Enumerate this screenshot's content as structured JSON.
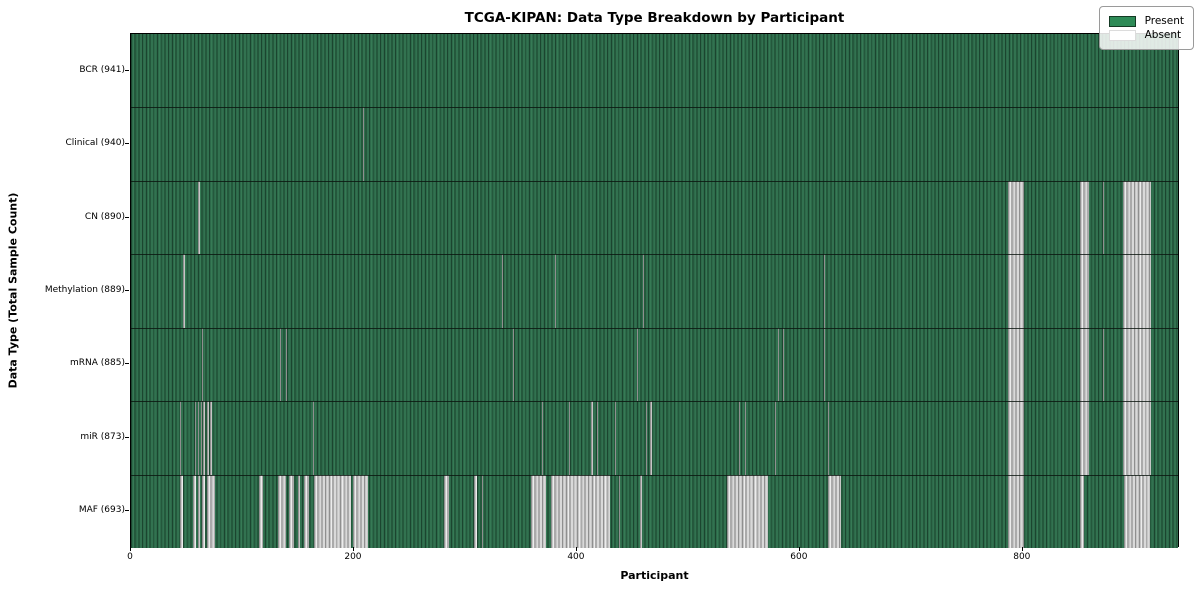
{
  "title": "TCGA-KIPAN: Data Type Breakdown by Participant",
  "xlabel": "Participant",
  "ylabel": "Data Type (Total Sample Count)",
  "legend": {
    "present_label": "Present",
    "absent_label": "Absent"
  },
  "colors": {
    "present": "#2e8b57",
    "present_render_base": "#2d6a4a",
    "absent": "#ffffff",
    "absent_render_base": "#c2c2c2",
    "plot_border": "#000000"
  },
  "chart_data": {
    "type": "heatmap",
    "title": "TCGA-KIPAN: Data Type Breakdown by Participant",
    "xlabel": "Participant",
    "ylabel": "Data Type (Total Sample Count)",
    "legend_entries": [
      "Present",
      "Absent"
    ],
    "legend_position": "upper right",
    "x_axis": {
      "min": 0,
      "max": 941,
      "ticks": [
        0,
        200,
        400,
        600,
        800
      ]
    },
    "value_encoding": {
      "present": "green",
      "absent": "white"
    },
    "rows": [
      {
        "label": "BCR (941)",
        "data_type": "BCR",
        "total_samples": 941,
        "absent_ranges": []
      },
      {
        "label": "Clinical (940)",
        "data_type": "Clinical",
        "total_samples": 940,
        "absent_ranges": [
          [
            208,
            209
          ]
        ]
      },
      {
        "label": "CN (890)",
        "data_type": "CN",
        "total_samples": 890,
        "absent_ranges": [
          [
            60,
            62
          ],
          [
            787,
            801
          ],
          [
            851,
            859
          ],
          [
            872,
            873
          ],
          [
            890,
            915
          ]
        ]
      },
      {
        "label": "Methylation (889)",
        "data_type": "Methylation",
        "total_samples": 889,
        "absent_ranges": [
          [
            47,
            48
          ],
          [
            333,
            334
          ],
          [
            380,
            381
          ],
          [
            459,
            460
          ],
          [
            622,
            623
          ],
          [
            787,
            801
          ],
          [
            851,
            859
          ],
          [
            890,
            915
          ]
        ]
      },
      {
        "label": "mRNA (885)",
        "data_type": "mRNA",
        "total_samples": 885,
        "absent_ranges": [
          [
            64,
            65
          ],
          [
            134,
            135
          ],
          [
            139,
            140
          ],
          [
            343,
            344
          ],
          [
            454,
            455
          ],
          [
            580,
            581
          ],
          [
            585,
            586
          ],
          [
            622,
            623
          ],
          [
            787,
            801
          ],
          [
            851,
            859
          ],
          [
            872,
            873
          ],
          [
            890,
            915
          ]
        ]
      },
      {
        "label": "miR (873)",
        "data_type": "miR",
        "total_samples": 873,
        "absent_ranges": [
          [
            44,
            45
          ],
          [
            57,
            58
          ],
          [
            60,
            61
          ],
          [
            63,
            64
          ],
          [
            65,
            66
          ],
          [
            68,
            70
          ],
          [
            71,
            73
          ],
          [
            163,
            164
          ],
          [
            369,
            370
          ],
          [
            393,
            394
          ],
          [
            413,
            414
          ],
          [
            418,
            419
          ],
          [
            434,
            435
          ],
          [
            462,
            463
          ],
          [
            466,
            467
          ],
          [
            545,
            546
          ],
          [
            551,
            552
          ],
          [
            578,
            579
          ],
          [
            625,
            626
          ],
          [
            787,
            801
          ],
          [
            851,
            859
          ],
          [
            890,
            915
          ]
        ]
      },
      {
        "label": "MAF (693)",
        "data_type": "MAF",
        "total_samples": 693,
        "absent_ranges": [
          [
            44,
            47
          ],
          [
            56,
            58
          ],
          [
            60,
            62
          ],
          [
            64,
            66
          ],
          [
            68,
            75
          ],
          [
            115,
            118
          ],
          [
            132,
            139
          ],
          [
            142,
            146
          ],
          [
            150,
            152
          ],
          [
            155,
            160
          ],
          [
            164,
            197
          ],
          [
            199,
            213
          ],
          [
            281,
            285
          ],
          [
            308,
            310
          ],
          [
            315,
            316
          ],
          [
            359,
            372
          ],
          [
            377,
            430
          ],
          [
            438,
            439
          ],
          [
            457,
            458
          ],
          [
            535,
            571
          ],
          [
            625,
            637
          ],
          [
            787,
            801
          ],
          [
            851,
            855
          ],
          [
            891,
            914
          ]
        ]
      }
    ]
  }
}
